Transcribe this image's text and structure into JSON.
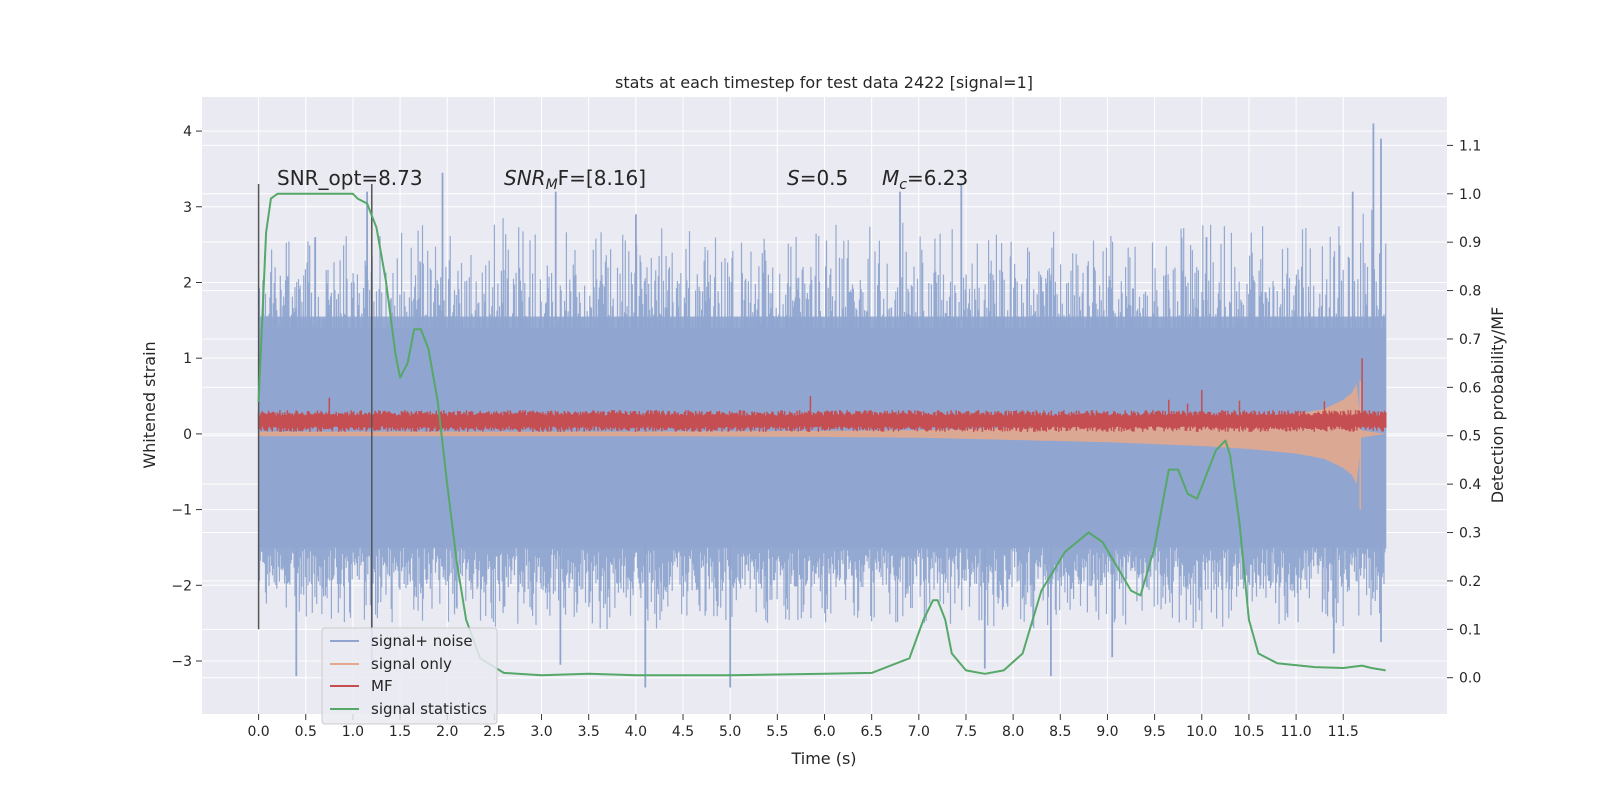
{
  "chart_data": {
    "type": "line",
    "title": "stats at each timestep for test data 2422 [signal=1]",
    "xlabel": "Time (s)",
    "ylabel": "Whitened strain",
    "y2label": "Detection probability/MF",
    "xlim": [
      -0.6,
      12.6
    ],
    "ylim": [
      -3.7,
      4.45
    ],
    "y2lim": [
      -0.075,
      1.2
    ],
    "x_ticks": [
      "0.0",
      "0.5",
      "1.0",
      "1.5",
      "2.0",
      "2.5",
      "3.0",
      "3.5",
      "4.0",
      "4.5",
      "5.0",
      "5.5",
      "6.0",
      "6.5",
      "7.0",
      "7.5",
      "8.0",
      "8.5",
      "9.0",
      "9.5",
      "10.0",
      "10.5",
      "11.0",
      "11.5"
    ],
    "y_ticks": [
      -3,
      -2,
      -1,
      0,
      1,
      2,
      3,
      4
    ],
    "y_tick_labels": [
      "−3",
      "−2",
      "−1",
      "0",
      "1",
      "2",
      "3",
      "4"
    ],
    "y2_ticks": [
      0.0,
      0.1,
      0.2,
      0.3,
      0.4,
      0.5,
      0.6,
      0.7,
      0.8,
      0.9,
      1.0,
      1.1
    ],
    "y2_tick_labels": [
      "0.0",
      "0.1",
      "0.2",
      "0.3",
      "0.4",
      "0.5",
      "0.6",
      "0.7",
      "0.8",
      "0.9",
      "1.0",
      "1.1"
    ],
    "grid": true,
    "legend_position": "bottom-left",
    "annotations": {
      "snr_opt": "SNR_opt=8.73",
      "snr_mf_italic": "SNR",
      "snr_mf_sub": "M",
      "snr_mf_rest": "F=[8.16]",
      "s_italic": "S",
      "s_rest": "=0.5",
      "mc_italic": "M",
      "mc_sub": "c",
      "mc_rest": "=6.23"
    },
    "vertical_lines_x": [
      0.0,
      1.2
    ],
    "series": [
      {
        "name": "signal+ noise",
        "color": "#8fa5cf",
        "x_range": [
          0.0,
          11.95
        ],
        "band_envelope": {
          "x": [
            0.0,
            1.0,
            2.0,
            3.0,
            4.0,
            5.0,
            6.0,
            7.0,
            8.0,
            9.0,
            10.0,
            11.0,
            11.95
          ],
          "upper": [
            2.5,
            2.7,
            2.8,
            2.9,
            2.8,
            2.7,
            2.8,
            2.8,
            2.7,
            2.8,
            2.8,
            2.9,
            3.2
          ],
          "lower": [
            -2.4,
            -2.5,
            -2.5,
            -2.6,
            -2.6,
            -2.5,
            -2.5,
            -2.5,
            -2.6,
            -2.5,
            -2.6,
            -2.5,
            -2.6
          ]
        },
        "peaks": [
          {
            "x": 0.05,
            "y": 2.0
          },
          {
            "x": 0.6,
            "y": 2.6
          },
          {
            "x": 1.15,
            "y": 3.2
          },
          {
            "x": 1.95,
            "y": 3.45
          },
          {
            "x": 3.15,
            "y": 3.2
          },
          {
            "x": 4.0,
            "y": 2.9
          },
          {
            "x": 6.8,
            "y": 3.2
          },
          {
            "x": 7.45,
            "y": 3.3
          },
          {
            "x": 10.05,
            "y": 2.6
          },
          {
            "x": 11.6,
            "y": 3.2
          },
          {
            "x": 11.82,
            "y": 4.1
          },
          {
            "x": 11.9,
            "y": 3.9
          }
        ],
        "troughs": [
          {
            "x": 0.4,
            "y": -3.2
          },
          {
            "x": 1.2,
            "y": -3.1
          },
          {
            "x": 3.2,
            "y": -3.05
          },
          {
            "x": 4.1,
            "y": -3.35
          },
          {
            "x": 5.0,
            "y": -3.35
          },
          {
            "x": 7.7,
            "y": -3.1
          },
          {
            "x": 8.4,
            "y": -3.2
          },
          {
            "x": 9.05,
            "y": -2.95
          },
          {
            "x": 11.4,
            "y": -2.9
          },
          {
            "x": 11.9,
            "y": -2.75
          }
        ]
      },
      {
        "name": "signal only",
        "color": "#e3a98c",
        "envelope": {
          "x": [
            0.0,
            2.0,
            4.0,
            6.0,
            7.0,
            8.0,
            9.0,
            10.0,
            10.5,
            11.0,
            11.3,
            11.5,
            11.6,
            11.65,
            11.68,
            11.95
          ],
          "amplitude": [
            0.03,
            0.03,
            0.03,
            0.04,
            0.05,
            0.08,
            0.11,
            0.16,
            0.2,
            0.26,
            0.33,
            0.45,
            0.55,
            0.7,
            0.05,
            0.0
          ]
        }
      },
      {
        "name": "MF",
        "color": "#c44e52",
        "baseline": 0.17,
        "band_halfwidth": 0.12,
        "spikes": [
          {
            "x": 0.75,
            "y": 0.48
          },
          {
            "x": 5.85,
            "y": 0.5
          },
          {
            "x": 9.65,
            "y": 0.45
          },
          {
            "x": 9.85,
            "y": 0.4
          },
          {
            "x": 10.0,
            "y": 0.58
          },
          {
            "x": 10.4,
            "y": 0.44
          },
          {
            "x": 11.3,
            "y": 0.43
          },
          {
            "x": 11.7,
            "y": 1.0
          }
        ]
      },
      {
        "name": "signal statistics",
        "color": "#55a868",
        "axis": "right",
        "x": [
          0.0,
          0.08,
          0.13,
          0.2,
          0.35,
          0.55,
          0.8,
          1.0,
          1.05,
          1.15,
          1.25,
          1.35,
          1.45,
          1.5,
          1.58,
          1.65,
          1.72,
          1.8,
          1.9,
          2.0,
          2.1,
          2.2,
          2.35,
          2.6,
          3.0,
          3.5,
          4.0,
          5.0,
          6.0,
          6.5,
          6.9,
          7.05,
          7.15,
          7.2,
          7.28,
          7.35,
          7.5,
          7.7,
          7.9,
          8.1,
          8.3,
          8.55,
          8.8,
          8.95,
          9.1,
          9.25,
          9.35,
          9.5,
          9.65,
          9.75,
          9.85,
          9.95,
          10.05,
          10.15,
          10.25,
          10.3,
          10.4,
          10.5,
          10.6,
          10.8,
          11.2,
          11.5,
          11.7,
          11.8,
          11.95
        ],
        "y": [
          0.57,
          0.92,
          0.99,
          1.0,
          1.0,
          1.0,
          1.0,
          1.0,
          0.99,
          0.98,
          0.93,
          0.82,
          0.67,
          0.62,
          0.65,
          0.72,
          0.72,
          0.68,
          0.57,
          0.4,
          0.24,
          0.12,
          0.04,
          0.01,
          0.005,
          0.008,
          0.005,
          0.005,
          0.008,
          0.01,
          0.04,
          0.12,
          0.16,
          0.16,
          0.12,
          0.05,
          0.015,
          0.008,
          0.015,
          0.05,
          0.18,
          0.26,
          0.3,
          0.28,
          0.23,
          0.18,
          0.17,
          0.27,
          0.43,
          0.43,
          0.38,
          0.37,
          0.42,
          0.47,
          0.49,
          0.46,
          0.32,
          0.12,
          0.05,
          0.03,
          0.022,
          0.02,
          0.025,
          0.02,
          0.015
        ]
      }
    ]
  }
}
